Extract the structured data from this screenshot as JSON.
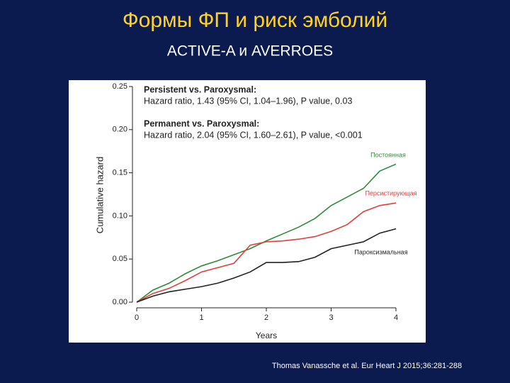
{
  "chart_data": {
    "type": "line",
    "title": "Формы ФП и риск эмболий",
    "subtitle": "ACTIVE-A и AVERROES",
    "source": "Thomas Vanassche et al. Eur Heart J 2015;36:281-288",
    "xlabel": "Years",
    "ylabel": "Cumulative hazard",
    "annotations": [
      "Persistent vs. Paroxysmal:",
      "Hazard ratio, 1.43 (95% CI, 1.04–1.96), P value, 0.03",
      "Permanent vs. Paroxysmal:",
      "Hazard ratio, 2.04 (95% CI, 1.60–2.61), P value, <0.001"
    ],
    "x": [
      0,
      0.25,
      0.5,
      0.75,
      1,
      1.25,
      1.5,
      1.75,
      2,
      2.25,
      2.5,
      2.75,
      3,
      3.25,
      3.5,
      3.75,
      4
    ],
    "series": [
      {
        "name": "Постоянная",
        "color": "#2e8b3a",
        "values": [
          0,
          0.014,
          0.022,
          0.033,
          0.042,
          0.048,
          0.055,
          0.062,
          0.071,
          0.079,
          0.087,
          0.097,
          0.112,
          0.122,
          0.132,
          0.152,
          0.16
        ]
      },
      {
        "name": "Персистирующая",
        "color": "#e0403a",
        "values": [
          0,
          0.01,
          0.016,
          0.025,
          0.035,
          0.04,
          0.045,
          0.066,
          0.07,
          0.071,
          0.073,
          0.076,
          0.082,
          0.09,
          0.105,
          0.112,
          0.115
        ]
      },
      {
        "name": "Пароксизмальная",
        "color": "#222222",
        "values": [
          0,
          0.007,
          0.012,
          0.015,
          0.018,
          0.022,
          0.028,
          0.035,
          0.046,
          0.046,
          0.047,
          0.052,
          0.062,
          0.066,
          0.07,
          0.08,
          0.085
        ]
      }
    ],
    "xlim": [
      0,
      4
    ],
    "xticks": [
      0,
      1,
      2,
      3,
      4
    ],
    "ylim": [
      0,
      0.25
    ],
    "yticks": [
      {
        "value": 0,
        "label": "0.00"
      },
      {
        "value": 0.05,
        "label": "0.05"
      },
      {
        "value": 0.1,
        "label": "0.10"
      },
      {
        "value": 0.15,
        "label": "0.15"
      },
      {
        "value": 0.2,
        "label": "0.20"
      },
      {
        "value": 0.25,
        "label": "0.25"
      }
    ]
  }
}
